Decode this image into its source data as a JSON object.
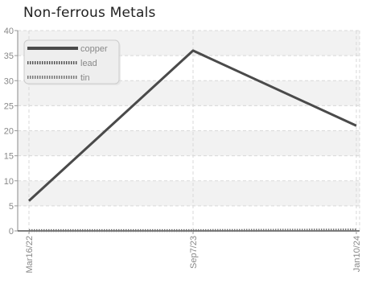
{
  "chart_data": {
    "type": "line",
    "title": "Non-ferrous Metals",
    "xlabel": "",
    "ylabel": "",
    "categories": [
      "Mar16/22",
      "Sep7/23",
      "Jan10/24"
    ],
    "ylim": [
      0,
      40
    ],
    "yticks": [
      "0",
      "5",
      "10",
      "15",
      "20",
      "25",
      "30",
      "35",
      "40"
    ],
    "grid": true,
    "legend_position": "top-left",
    "series": [
      {
        "name": "copper",
        "values": [
          6,
          36,
          21
        ],
        "color": "#4a4a4a",
        "style": "solid"
      },
      {
        "name": "lead",
        "values": [
          0.1,
          0.1,
          0.2
        ],
        "color": "#555555",
        "style": "dotted"
      },
      {
        "name": "tin",
        "values": [
          0.05,
          0.05,
          0.1
        ],
        "color": "#777777",
        "style": "dotted"
      }
    ]
  }
}
